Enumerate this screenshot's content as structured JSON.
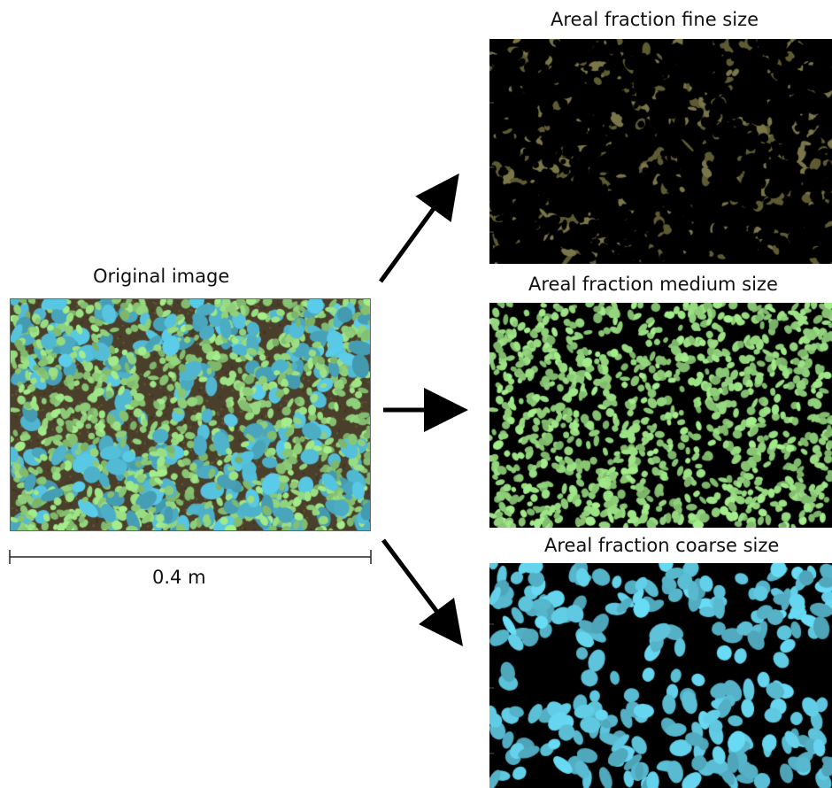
{
  "original": {
    "title": "Original image"
  },
  "fine": {
    "title": "Areal fraction fine size"
  },
  "medium": {
    "title": "Areal fraction medium size"
  },
  "coarse": {
    "title": "Areal fraction coarse size"
  },
  "scale_bar": {
    "label": "0.4 m"
  },
  "colors": {
    "coarse_clast": "#4fb3cc",
    "medium_clast": "#8fcf7a",
    "fine_matrix": "#6e6a3a",
    "background": "#000000",
    "arrow": "#000000"
  }
}
